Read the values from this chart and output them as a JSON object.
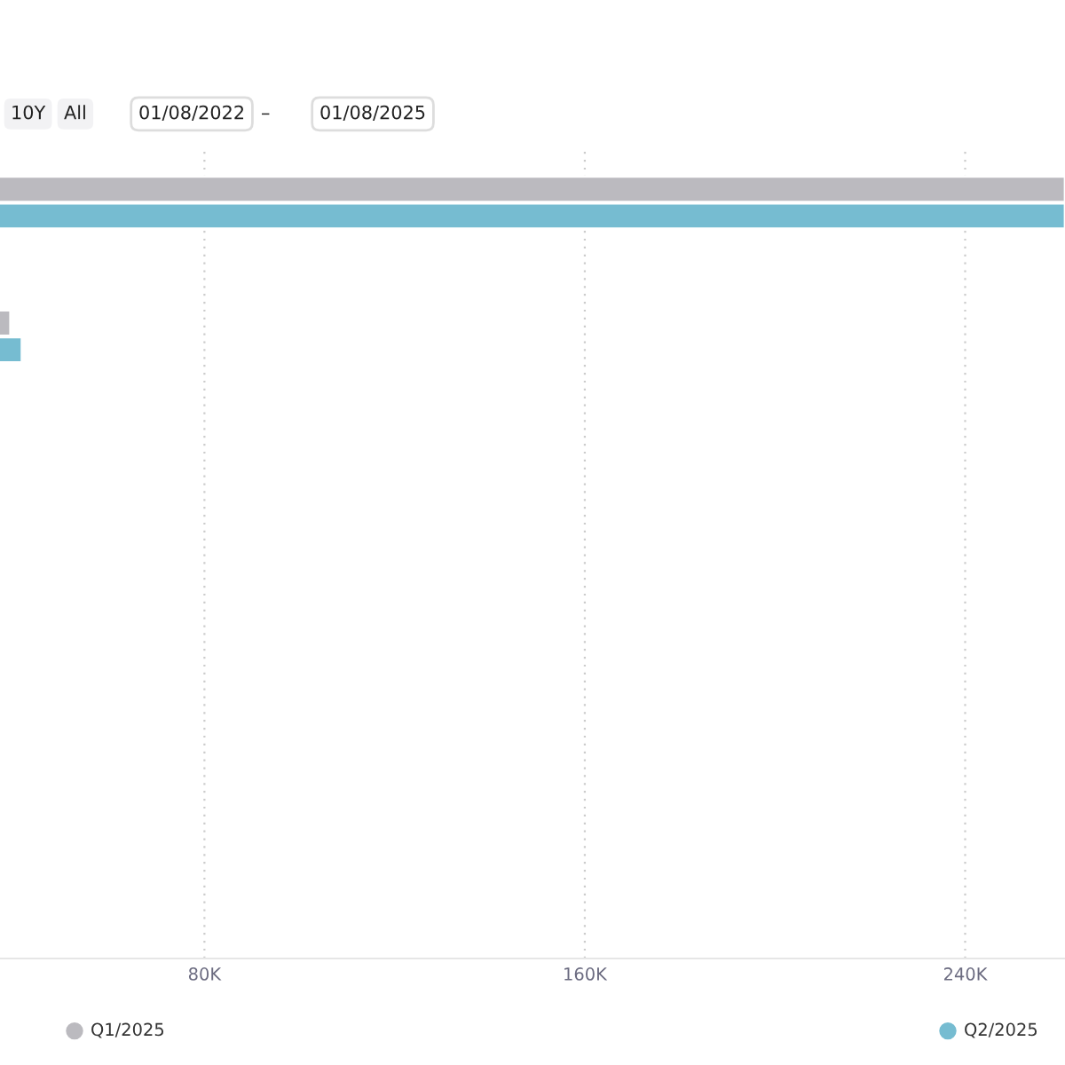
{
  "chart_data": {
    "type": "bar",
    "orientation": "horizontal",
    "categories": [
      null,
      null,
      null,
      null,
      null,
      null
    ],
    "series": [
      {
        "name": "Q1/2025",
        "color": "#bbbabf",
        "values": [
          261000,
          39200,
          null,
          null,
          null,
          null
        ]
      },
      {
        "name": "Q2/2025",
        "color": "#76bcd1",
        "values": [
          261000,
          41600,
          null,
          null,
          null,
          null
        ]
      }
    ],
    "xlim": [
      37000,
      261000
    ],
    "xticks": [
      {
        "value": 80000,
        "label": "80K"
      },
      {
        "value": 160000,
        "label": "160K"
      },
      {
        "value": 240000,
        "label": "240K"
      }
    ],
    "grid": "x",
    "legend": "bottom",
    "annotations": [
      "10Y",
      "All",
      "01/08/2022",
      "–",
      "01/08/2025"
    ]
  }
}
